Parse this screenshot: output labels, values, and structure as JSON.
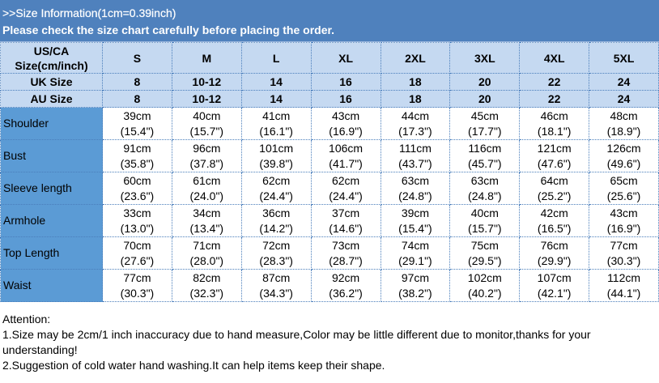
{
  "header": {
    "line1": ">>Size Information(1cm=0.39inch)",
    "line2": "Please check the size chart carefully before placing the order."
  },
  "table": {
    "size_label": "US/CA Size(cm/inch)",
    "sizes": [
      "S",
      "M",
      "L",
      "XL",
      "2XL",
      "3XL",
      "4XL",
      "5XL"
    ],
    "uk_label": "UK Size",
    "uk": [
      "8",
      "10-12",
      "14",
      "16",
      "18",
      "20",
      "22",
      "24"
    ],
    "au_label": "AU Size",
    "au": [
      "8",
      "10-12",
      "14",
      "16",
      "18",
      "20",
      "22",
      "24"
    ],
    "rows": [
      {
        "label": "Shoulder",
        "cm": [
          "39cm",
          "40cm",
          "41cm",
          "43cm",
          "44cm",
          "45cm",
          "46cm",
          "48cm"
        ],
        "inch": [
          "(15.4\")",
          "(15.7\")",
          "(16.1\")",
          "(16.9\")",
          "(17.3\")",
          "(17.7\")",
          "(18.1\")",
          "(18.9\")"
        ]
      },
      {
        "label": "Bust",
        "cm": [
          "91cm",
          "96cm",
          "101cm",
          "106cm",
          "111cm",
          "116cm",
          "121cm",
          "126cm"
        ],
        "inch": [
          "(35.8\")",
          "(37.8\")",
          "(39.8\")",
          "(41.7\")",
          "(43.7\")",
          "(45.7\")",
          "(47.6\")",
          "(49.6\")"
        ]
      },
      {
        "label": "Sleeve length",
        "cm": [
          "60cm",
          "61cm",
          "62cm",
          "62cm",
          "63cm",
          "63cm",
          "64cm",
          "65cm"
        ],
        "inch": [
          "(23.6\")",
          "(24.0\")",
          "(24.4\")",
          "(24.4\")",
          "(24.8\")",
          "(24.8\")",
          "(25.2\")",
          "(25.6\")"
        ]
      },
      {
        "label": "Armhole",
        "cm": [
          "33cm",
          "34cm",
          "36cm",
          "37cm",
          "39cm",
          "40cm",
          "42cm",
          "43cm"
        ],
        "inch": [
          "(13.0\")",
          "(13.4\")",
          "(14.2\")",
          "(14.6\")",
          "(15.4\")",
          "(15.7\")",
          "(16.5\")",
          "(16.9\")"
        ]
      },
      {
        "label": "Top Length",
        "cm": [
          "70cm",
          "71cm",
          "72cm",
          "73cm",
          "74cm",
          "75cm",
          "76cm",
          "77cm"
        ],
        "inch": [
          "(27.6\")",
          "(28.0\")",
          "(28.3\")",
          "(28.7\")",
          "(29.1\")",
          "(29.5\")",
          "(29.9\")",
          "(30.3\")"
        ]
      },
      {
        "label": "Waist",
        "cm": [
          "77cm",
          "82cm",
          "87cm",
          "92cm",
          "97cm",
          "102cm",
          "107cm",
          "112cm"
        ],
        "inch": [
          "(30.3\")",
          "(32.3\")",
          "(34.3\")",
          "(36.2\")",
          "(38.2\")",
          "(40.2\")",
          "(42.1\")",
          "(44.1\")"
        ]
      }
    ]
  },
  "attention": {
    "title": "Attention:",
    "note1": "1.Size may be 2cm/1 inch inaccuracy due to hand measure,Color may be little different due to monitor,thanks for your understanding!",
    "note2": "2.Suggestion of cold water hand washing.It can help items keep their shape."
  },
  "colors": {
    "header": "#4f81bd",
    "size_rows": "#c5d9f1",
    "row_labels": "#5b9bd5"
  }
}
